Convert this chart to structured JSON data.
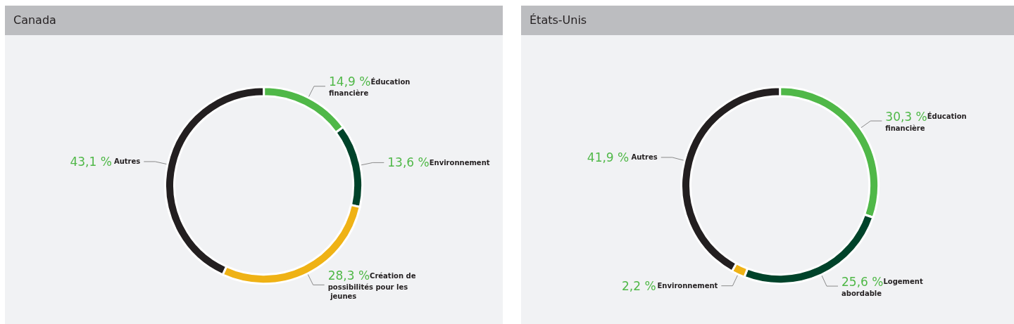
{
  "chart_data": [
    {
      "type": "donut",
      "title": "Canada",
      "categories": [
        "Éducation financière",
        "Environnement",
        "Création de possibilités pour les jeunes",
        "Autres"
      ],
      "values": [
        14.9,
        13.6,
        28.3,
        43.1
      ],
      "value_labels": [
        "14,9 %",
        "13,6 %",
        "28,3 %",
        "43,1 %"
      ],
      "colors": [
        "#50b848",
        "#00432a",
        "#efb215",
        "#231f20"
      ]
    },
    {
      "type": "donut",
      "title": "États-Unis",
      "categories": [
        "Éducation financière",
        "Logement abordable",
        "Environnement",
        "Autres"
      ],
      "values": [
        30.3,
        25.6,
        2.2,
        41.9
      ],
      "value_labels": [
        "30,3 %",
        "25,6 %",
        "2,2 %",
        "41,9 %"
      ],
      "colors": [
        "#50b848",
        "#00432a",
        "#efb215",
        "#231f20"
      ]
    }
  ]
}
